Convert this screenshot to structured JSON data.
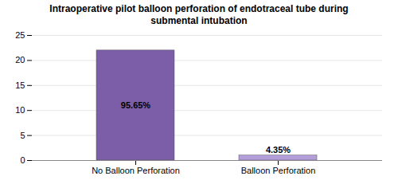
{
  "chart_data": {
    "type": "bar",
    "title": "Intraoperative pilot balloon perforation of endotraceal tube during\nsubmental intubation",
    "categories": [
      "No Balloon Perforation",
      "Balloon Perforation"
    ],
    "values": [
      22,
      1
    ],
    "value_labels": [
      "95.65%",
      "4.35%"
    ],
    "colors": [
      "#7b5ea7",
      "#b39ddb"
    ],
    "ylim": [
      0,
      25
    ],
    "yticks": [
      0,
      5,
      10,
      15,
      20,
      25
    ],
    "grid": true
  }
}
